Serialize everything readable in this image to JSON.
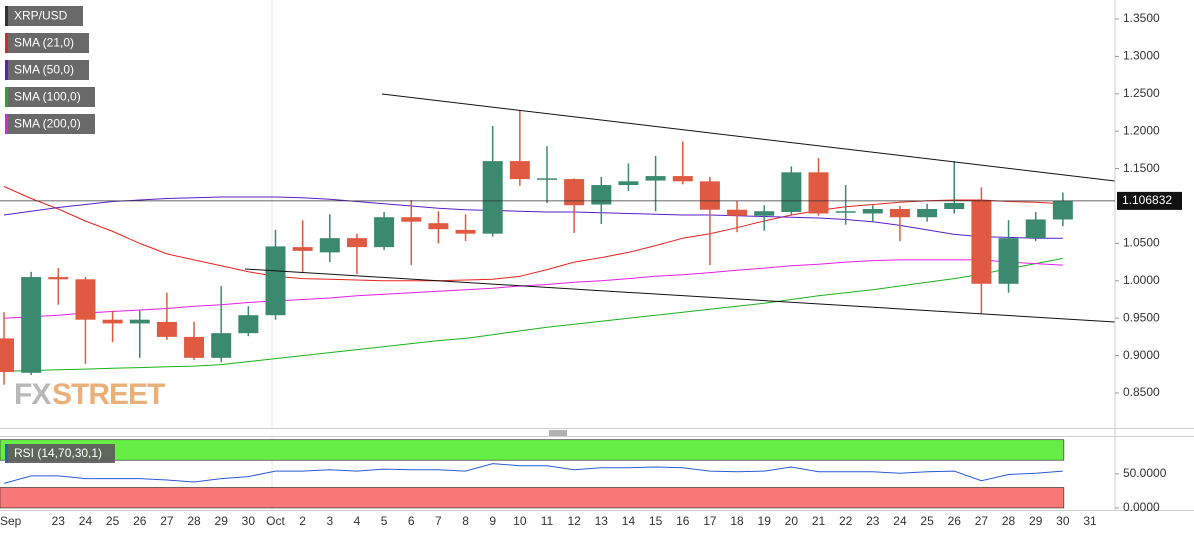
{
  "chart_data": {
    "type": "candlestick",
    "symbol": "XRP/USD",
    "categories": [
      "Sep",
      null,
      "23",
      "24",
      "25",
      "26",
      "27",
      "28",
      "29",
      "30",
      "Oct",
      "2",
      "3",
      "4",
      "5",
      "6",
      "7",
      "8",
      "9",
      "10",
      "11",
      "12",
      "13",
      "14",
      "15",
      "16",
      "17",
      "18",
      "19",
      "20",
      "21",
      "22",
      "23",
      "24",
      "25",
      "26",
      "27",
      "28",
      "29",
      "30",
      "31"
    ],
    "open": [
      0.923,
      0.877,
      1.005,
      1.002,
      0.948,
      0.943,
      0.945,
      0.925,
      0.897,
      0.93,
      0.954,
      1.045,
      1.038,
      1.057,
      1.045,
      1.085,
      1.077,
      1.068,
      1.063,
      1.16,
      1.136,
      1.136,
      1.102,
      1.128,
      1.134,
      1.14,
      1.133,
      1.095,
      1.087,
      1.092,
      1.145,
      1.091,
      1.09,
      1.096,
      1.085,
      1.096,
      1.107,
      0.996,
      1.057,
      1.082,
      null
    ],
    "high": [
      0.958,
      1.012,
      1.017,
      1.005,
      0.96,
      0.96,
      0.984,
      0.945,
      0.993,
      0.966,
      1.068,
      1.081,
      1.089,
      1.063,
      1.092,
      1.108,
      1.093,
      1.089,
      1.207,
      1.228,
      1.18,
      1.137,
      1.139,
      1.157,
      1.167,
      1.186,
      1.139,
      1.107,
      1.101,
      1.153,
      1.164,
      1.128,
      1.101,
      1.1,
      1.103,
      1.16,
      1.125,
      1.081,
      1.092,
      1.118,
      null
    ],
    "low": [
      0.861,
      0.874,
      0.968,
      0.889,
      0.918,
      0.897,
      0.921,
      0.894,
      0.891,
      0.926,
      0.948,
      1.012,
      1.025,
      1.009,
      1.041,
      1.021,
      1.05,
      1.053,
      1.059,
      1.127,
      1.104,
      1.064,
      1.076,
      1.12,
      1.093,
      1.129,
      1.021,
      1.065,
      1.067,
      1.087,
      1.087,
      1.075,
      1.079,
      1.053,
      1.079,
      1.09,
      0.956,
      0.984,
      1.053,
      1.073,
      null
    ],
    "close": [
      0.878,
      1.005,
      1.002,
      0.948,
      0.943,
      0.948,
      0.925,
      0.897,
      0.93,
      0.954,
      1.046,
      1.04,
      1.057,
      1.045,
      1.085,
      1.079,
      1.069,
      1.063,
      1.16,
      1.136,
      1.137,
      1.101,
      1.128,
      1.133,
      1.14,
      1.133,
      1.095,
      1.087,
      1.093,
      1.145,
      1.09,
      1.093,
      1.096,
      1.085,
      1.096,
      1.104,
      0.996,
      1.057,
      1.082,
      1.106832,
      null
    ],
    "up_color": "#3b8a70",
    "down_color": "#e05a42",
    "last_price": 1.106832,
    "series": [
      {
        "name": "SMA (21,0)",
        "color": "#e8231f",
        "values": [
          1.126,
          1.11,
          1.096,
          1.08,
          1.066,
          1.05,
          1.036,
          1.028,
          1.02,
          1.012,
          1.006,
          1.003,
          1.002,
          1.001,
          1.0,
          1.0,
          1.0,
          1.001,
          1.002,
          1.006,
          1.015,
          1.025,
          1.031,
          1.038,
          1.047,
          1.057,
          1.063,
          1.071,
          1.08,
          1.088,
          1.094,
          1.099,
          1.102,
          1.105,
          1.107,
          1.108,
          1.108,
          1.106,
          1.105,
          1.103,
          null
        ]
      },
      {
        "name": "SMA (50,0)",
        "color": "#5a1ec8",
        "values": [
          1.088,
          1.093,
          1.098,
          1.102,
          1.106,
          1.108,
          1.11,
          1.111,
          1.112,
          1.112,
          1.112,
          1.111,
          1.109,
          1.106,
          1.103,
          1.1,
          1.097,
          1.095,
          1.094,
          1.093,
          1.092,
          1.092,
          1.091,
          1.09,
          1.089,
          1.088,
          1.088,
          1.087,
          1.086,
          1.085,
          1.084,
          1.082,
          1.079,
          1.074,
          1.068,
          1.062,
          1.059,
          1.058,
          1.057,
          1.057,
          null
        ]
      },
      {
        "name": "SMA (100,0)",
        "color": "#1ab21a",
        "values": [
          0.879,
          0.88,
          0.881,
          0.882,
          0.883,
          0.884,
          0.885,
          0.886,
          0.888,
          0.892,
          0.896,
          0.9,
          0.904,
          0.908,
          0.912,
          0.916,
          0.92,
          0.923,
          0.928,
          0.933,
          0.938,
          0.942,
          0.946,
          0.95,
          0.954,
          0.958,
          0.962,
          0.966,
          0.97,
          0.975,
          0.98,
          0.984,
          0.988,
          0.993,
          0.998,
          1.003,
          1.009,
          1.016,
          1.023,
          1.03,
          null
        ]
      },
      {
        "name": "SMA (200,0)",
        "color": "#e81ee8",
        "values": [
          0.95,
          0.952,
          0.954,
          0.957,
          0.959,
          0.961,
          0.963,
          0.966,
          0.968,
          0.971,
          0.973,
          0.975,
          0.977,
          0.98,
          0.982,
          0.984,
          0.986,
          0.988,
          0.99,
          0.993,
          0.995,
          0.998,
          1.0,
          1.003,
          1.006,
          1.008,
          1.011,
          1.014,
          1.017,
          1.02,
          1.022,
          1.025,
          1.027,
          1.028,
          1.028,
          1.028,
          1.028,
          1.025,
          1.023,
          1.021,
          null
        ]
      }
    ],
    "ylim": [
      0.8032,
      1.3754
    ],
    "yticks": [
      {
        "value": 0.85,
        "label": "0.8500"
      },
      {
        "value": 0.9,
        "label": "0.9000"
      },
      {
        "value": 0.95,
        "label": "0.9500"
      },
      {
        "value": 1.0,
        "label": "1.0000"
      },
      {
        "value": 1.05,
        "label": "1.0500"
      },
      {
        "value": 1.15,
        "label": "1.1500"
      },
      {
        "value": 1.2,
        "label": "1.2000"
      },
      {
        "value": 1.25,
        "label": "1.2500"
      },
      {
        "value": 1.3,
        "label": "1.3000"
      },
      {
        "value": 1.35,
        "label": "1.3500"
      }
    ],
    "watermark": [
      "FX",
      "STREET"
    ],
    "rsi": {
      "name": "RSI (14,70,30,1)",
      "color": "#2a5bd7",
      "values": [
        36,
        47,
        47,
        43,
        43,
        43,
        41,
        38,
        43,
        46,
        54,
        54,
        56,
        54,
        57,
        56,
        56,
        54,
        65,
        62,
        62,
        56,
        59,
        59,
        60,
        59,
        54,
        53,
        54,
        60,
        53,
        53,
        53,
        51,
        53,
        54,
        40,
        49,
        51,
        54,
        null
      ],
      "upper_band": [
        70,
        100
      ],
      "lower_band": [
        0,
        30
      ],
      "upper_color": "#66ee44",
      "lower_color": "#f87878",
      "ylim": [
        -3,
        104
      ],
      "yticks": [
        {
          "value": 0,
          "label": "0.0000"
        },
        {
          "value": 50,
          "label": "50.0000"
        }
      ]
    }
  }
}
